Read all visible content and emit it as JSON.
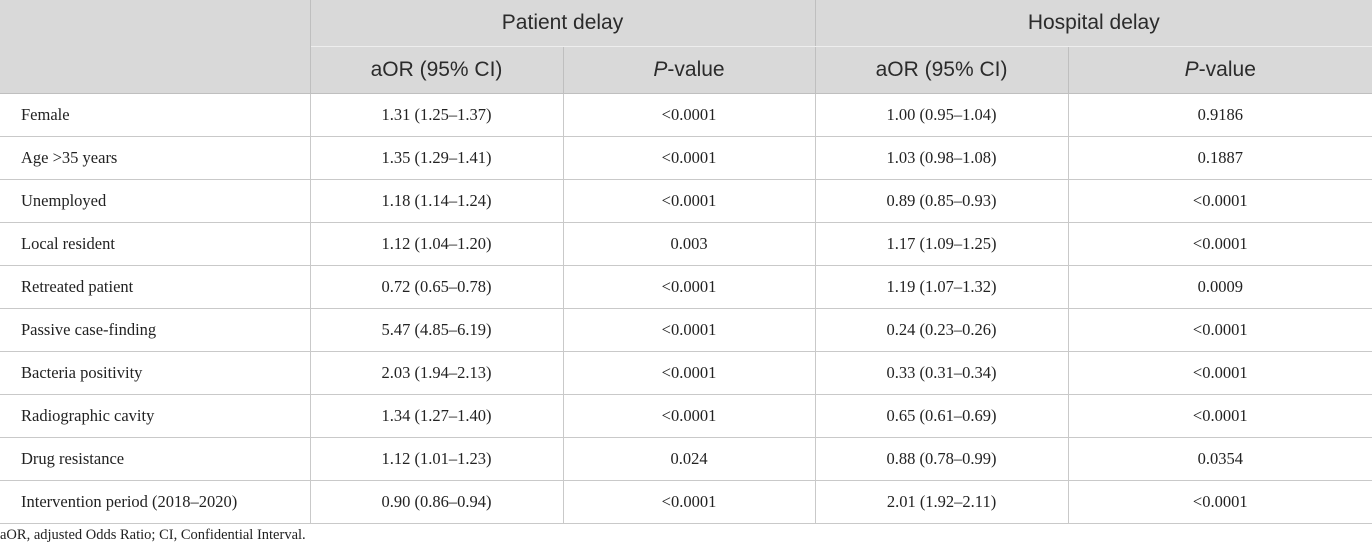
{
  "header": {
    "group1": "Patient delay",
    "group2": "Hospital delay",
    "col_aor": "aOR (95% CI)",
    "col_p_italic": "P",
    "col_p_rest": "-value"
  },
  "rows": [
    {
      "label": "Female",
      "pd_aor": "1.31 (1.25–1.37)",
      "pd_p": "<0.0001",
      "hd_aor": "1.00 (0.95–1.04)",
      "hd_p": "0.9186"
    },
    {
      "label": "Age >35 years",
      "pd_aor": "1.35 (1.29–1.41)",
      "pd_p": "<0.0001",
      "hd_aor": "1.03 (0.98–1.08)",
      "hd_p": "0.1887"
    },
    {
      "label": "Unemployed",
      "pd_aor": "1.18 (1.14–1.24)",
      "pd_p": "<0.0001",
      "hd_aor": "0.89 (0.85–0.93)",
      "hd_p": "<0.0001"
    },
    {
      "label": "Local resident",
      "pd_aor": "1.12 (1.04–1.20)",
      "pd_p": "0.003",
      "hd_aor": "1.17 (1.09–1.25)",
      "hd_p": "<0.0001"
    },
    {
      "label": "Retreated patient",
      "pd_aor": "0.72 (0.65–0.78)",
      "pd_p": "<0.0001",
      "hd_aor": "1.19 (1.07–1.32)",
      "hd_p": "0.0009"
    },
    {
      "label": "Passive case-finding",
      "pd_aor": "5.47 (4.85–6.19)",
      "pd_p": "<0.0001",
      "hd_aor": "0.24 (0.23–0.26)",
      "hd_p": "<0.0001"
    },
    {
      "label": "Bacteria positivity",
      "pd_aor": "2.03 (1.94–2.13)",
      "pd_p": "<0.0001",
      "hd_aor": "0.33 (0.31–0.34)",
      "hd_p": "<0.0001"
    },
    {
      "label": "Radiographic cavity",
      "pd_aor": "1.34 (1.27–1.40)",
      "pd_p": "<0.0001",
      "hd_aor": "0.65 (0.61–0.69)",
      "hd_p": "<0.0001"
    },
    {
      "label": "Drug resistance",
      "pd_aor": "1.12 (1.01–1.23)",
      "pd_p": "0.024",
      "hd_aor": "0.88 (0.78–0.99)",
      "hd_p": "0.0354"
    },
    {
      "label": "Intervention period (2018–2020)",
      "pd_aor": "0.90 (0.86–0.94)",
      "pd_p": "<0.0001",
      "hd_aor": "2.01 (1.92–2.11)",
      "hd_p": "<0.0001"
    }
  ],
  "footnote": "aOR, adjusted Odds Ratio; CI, Confidential Interval."
}
